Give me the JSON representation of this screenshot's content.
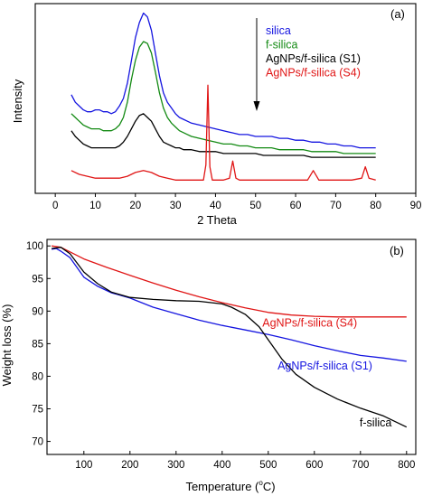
{
  "chart_data": [
    {
      "type": "line",
      "panel_label": "(a)",
      "xlabel": "2 Theta",
      "ylabel": "Intensity",
      "xlim": [
        -5,
        90
      ],
      "ylim": [
        0,
        100
      ],
      "x_ticks": [
        0,
        10,
        20,
        30,
        40,
        50,
        60,
        70,
        80,
        90
      ],
      "x_tick_labels": [
        "0",
        "10",
        "20",
        "30",
        "40",
        "50",
        "60",
        "70",
        "80",
        "90"
      ],
      "y_ticks_visible": false,
      "legend_position": "top-right",
      "series": [
        {
          "name": "silica",
          "color": "#1515e0",
          "x": [
            4,
            5,
            6,
            7,
            8,
            9,
            10,
            11,
            12,
            13,
            14,
            15,
            16,
            17,
            18,
            19,
            20,
            21,
            22,
            23,
            24,
            25,
            26,
            27,
            28,
            29,
            30,
            31,
            32,
            33,
            34,
            36,
            38,
            40,
            42,
            44,
            46,
            48,
            50,
            52,
            54,
            56,
            58,
            60,
            62,
            64,
            66,
            68,
            70,
            72,
            74,
            76,
            78,
            80
          ],
          "y": [
            52,
            48,
            46,
            44,
            43,
            43,
            44,
            44,
            43,
            43,
            42,
            43,
            46,
            50,
            58,
            70,
            82,
            90,
            95,
            93,
            86,
            74,
            62,
            53,
            48,
            45,
            42,
            40,
            39,
            38,
            37,
            36,
            35,
            34,
            33,
            32,
            31,
            31,
            30,
            30,
            30,
            29,
            29,
            28,
            28,
            27,
            27,
            26,
            26,
            25,
            25,
            24,
            24,
            24
          ]
        },
        {
          "name": "f-silica",
          "color": "#138a13",
          "x": [
            4,
            5,
            6,
            7,
            8,
            9,
            10,
            11,
            12,
            13,
            14,
            15,
            16,
            17,
            18,
            19,
            20,
            21,
            22,
            23,
            24,
            25,
            26,
            27,
            28,
            29,
            30,
            31,
            32,
            33,
            34,
            36,
            38,
            40,
            42,
            44,
            46,
            48,
            50,
            52,
            54,
            56,
            58,
            60,
            62,
            64,
            66,
            68,
            70,
            72,
            74,
            76,
            78,
            80
          ],
          "y": [
            42,
            40,
            38,
            36,
            35,
            34,
            34,
            34,
            33,
            33,
            33,
            34,
            36,
            40,
            48,
            60,
            70,
            77,
            80,
            79,
            74,
            64,
            53,
            45,
            40,
            37,
            35,
            33,
            32,
            31,
            30,
            29,
            28,
            27,
            26,
            26,
            25,
            25,
            24,
            24,
            24,
            23,
            23,
            23,
            23,
            22,
            22,
            22,
            22,
            21,
            21,
            21,
            21,
            21
          ],
          "label_color": "#138a13"
        },
        {
          "name": "AgNPs/f-silica (S1)",
          "color": "#000000",
          "x": [
            4,
            5,
            6,
            7,
            8,
            9,
            10,
            11,
            12,
            13,
            14,
            15,
            16,
            17,
            18,
            19,
            20,
            21,
            22,
            23,
            24,
            25,
            26,
            27,
            28,
            29,
            30,
            31,
            32,
            33,
            34,
            36,
            38,
            40,
            42,
            44,
            46,
            48,
            50,
            52,
            54,
            56,
            58,
            60,
            62,
            64,
            66,
            68,
            70,
            72,
            74,
            76,
            78,
            80
          ],
          "y": [
            33,
            30,
            28,
            26,
            25,
            24,
            24,
            24,
            24,
            24,
            24,
            24,
            25,
            27,
            30,
            34,
            38,
            41,
            42,
            40,
            38,
            34,
            30,
            27,
            26,
            25,
            24,
            24,
            23,
            23,
            23,
            22,
            22,
            22,
            21,
            21,
            21,
            21,
            21,
            20,
            20,
            20,
            20,
            20,
            20,
            19,
            19,
            19,
            19,
            19,
            19,
            19,
            19,
            19
          ]
        },
        {
          "name": "AgNPs/f-silica (S4)",
          "color": "#e01515",
          "x": [
            4,
            6,
            8,
            10,
            12,
            14,
            16,
            18,
            20,
            22,
            24,
            26,
            28,
            30,
            32,
            34,
            36,
            37,
            37.6,
            38.1,
            38.6,
            39.2,
            40,
            42,
            43.5,
            44.3,
            45.1,
            46,
            50,
            55,
            60,
            63,
            64.4,
            65.8,
            67,
            70,
            74,
            76.5,
            77.4,
            78.3,
            80
          ],
          "y": [
            12,
            10,
            9,
            8,
            8,
            8,
            8,
            9,
            11,
            12,
            11,
            9,
            8,
            7,
            7,
            7,
            7,
            7,
            15,
            57,
            14,
            7,
            7,
            7,
            8,
            17,
            8,
            7,
            7,
            7,
            7,
            7,
            12,
            7,
            7,
            7,
            7,
            8,
            14,
            8,
            7
          ]
        }
      ]
    },
    {
      "type": "line",
      "panel_label": "(b)",
      "xlabel": "Temperature (°C)",
      "xlabel_main": "Temperature (",
      "xlabel_degree": "o",
      "xlabel_unit": "C)",
      "ylabel": "Weight loss (%)",
      "xlim": [
        20,
        820
      ],
      "ylim": [
        68,
        101
      ],
      "x_ticks": [
        100,
        200,
        300,
        400,
        500,
        600,
        700,
        800
      ],
      "x_tick_labels": [
        "100",
        "200",
        "300",
        "400",
        "500",
        "600",
        "700",
        "800"
      ],
      "y_ticks": [
        70,
        75,
        80,
        85,
        90,
        95,
        100
      ],
      "y_tick_labels": [
        "70",
        "75",
        "80",
        "85",
        "90",
        "95",
        "100"
      ],
      "series": [
        {
          "name": "AgNPs/f-silica (S4)",
          "color": "#e01515",
          "x": [
            30,
            50,
            100,
            150,
            200,
            250,
            300,
            350,
            400,
            450,
            500,
            550,
            600,
            650,
            700,
            750,
            800
          ],
          "y": [
            100,
            99.8,
            98,
            96.7,
            95.5,
            94.3,
            93.2,
            92.2,
            91.3,
            90.5,
            89.8,
            89.4,
            89.2,
            89.1,
            89.1,
            89.1,
            89.1
          ]
        },
        {
          "name": "AgNPs/f-silica (S1)",
          "color": "#1515e0",
          "x": [
            30,
            40,
            50,
            70,
            100,
            130,
            160,
            200,
            250,
            300,
            350,
            400,
            450,
            500,
            550,
            600,
            650,
            700,
            750,
            800
          ],
          "y": [
            99.5,
            99.6,
            99.2,
            98.2,
            95.2,
            93.8,
            92.8,
            92,
            90.6,
            89.6,
            88.6,
            87.8,
            87.1,
            86.4,
            85.6,
            84.7,
            83.9,
            83.2,
            82.8,
            82.3
          ]
        },
        {
          "name": "f-silica",
          "color": "#000000",
          "x": [
            30,
            50,
            70,
            100,
            130,
            160,
            200,
            250,
            300,
            350,
            400,
            420,
            450,
            480,
            500,
            530,
            560,
            600,
            650,
            700,
            750,
            800
          ],
          "y": [
            99.6,
            99.8,
            98.8,
            96,
            94.2,
            92.9,
            92.1,
            91.8,
            91.6,
            91.5,
            91.1,
            90.6,
            89.5,
            87.6,
            85.6,
            82.6,
            80.3,
            78.3,
            76.5,
            75.1,
            73.9,
            72.2
          ]
        }
      ],
      "annotations": [
        {
          "text": "AgNPs/f-silica (S4)",
          "color": "#e01515"
        },
        {
          "text": "AgNPs/f-silica (S1)",
          "color": "#1515e0"
        },
        {
          "text": "f-silica",
          "color": "#000000"
        }
      ]
    }
  ]
}
